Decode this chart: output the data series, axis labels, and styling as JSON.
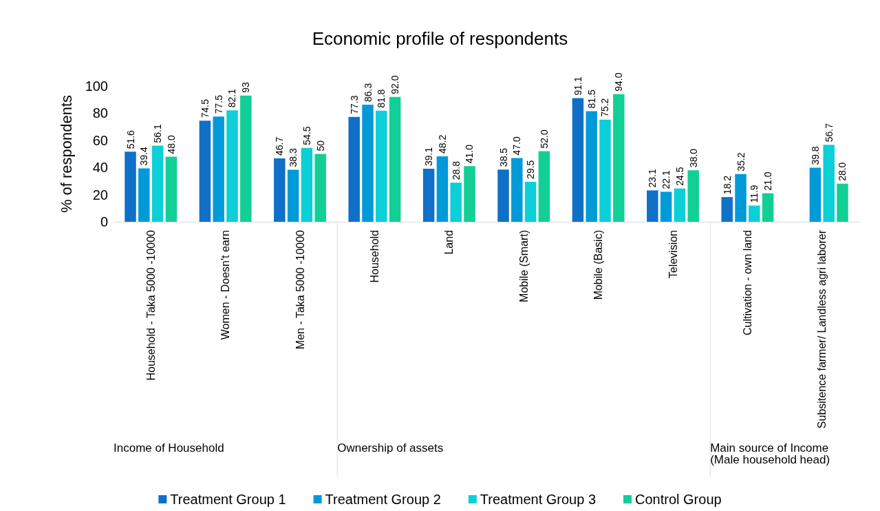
{
  "chart_data": {
    "type": "bar",
    "title": "Economic profile of respondents",
    "ylabel": "% of respondents",
    "categories": [
      "Household - Taka 5000 -10000",
      "Women - Doesn't earn",
      "Men - Taka 5000 -10000",
      "Household",
      "Land",
      "Mobile (Smart)",
      "Mobile (Basic)",
      "Television",
      "Cultivation - own land",
      "Subsitence farmer/ Landless agri laborer"
    ],
    "annotations": [
      "Income of Household",
      "Ownership of assets",
      "Main source of Income (Male household head)"
    ],
    "series": [
      {
        "name": "Treatment Group 1",
        "color": "#1070c8",
        "values": [
          51.6,
          74.5,
          46.7,
          77.3,
          39.1,
          38.5,
          91.1,
          23.1,
          18.2,
          null
        ],
        "value_labels": [
          "51.6",
          "74.5",
          "46.7",
          "77.3",
          "39.1",
          "38.5",
          "91.1",
          "23.1",
          "18.2",
          null
        ]
      },
      {
        "name": "Treatment Group 2",
        "color": "#009ad8",
        "values": [
          39.4,
          77.5,
          38.3,
          86.3,
          48.2,
          47.0,
          81.5,
          22.1,
          35.2,
          39.8
        ],
        "value_labels": [
          "39.4",
          "77.5",
          "38.3",
          "86.3",
          "48.2",
          "47.0",
          "81.5",
          "22.1",
          "35.2",
          "39.8"
        ]
      },
      {
        "name": "Treatment Group 3",
        "color": "#0ccfd8",
        "values": [
          56.1,
          82.1,
          54.5,
          81.8,
          28.8,
          29.5,
          75.2,
          24.5,
          11.9,
          56.7
        ],
        "value_labels": [
          "56.1",
          "82.1",
          "54.5",
          "81.8",
          "28.8",
          "29.5",
          "75.2",
          "24.5",
          "11.9",
          "56.7"
        ]
      },
      {
        "name": "Control Group",
        "color": "#12cf96",
        "values": [
          48.0,
          93,
          50,
          92.0,
          41.0,
          52.0,
          94.0,
          38.0,
          21.0,
          28.0
        ],
        "value_labels": [
          "48.0",
          "93",
          "50",
          "92.0",
          "41.0",
          "52.0",
          "94.0",
          "38.0",
          "21.0",
          "28.0"
        ]
      }
    ],
    "ylim": [
      0,
      100
    ],
    "yticks": [
      0,
      20,
      40,
      60,
      80,
      100
    ],
    "grid": false,
    "legend": "bottom"
  }
}
